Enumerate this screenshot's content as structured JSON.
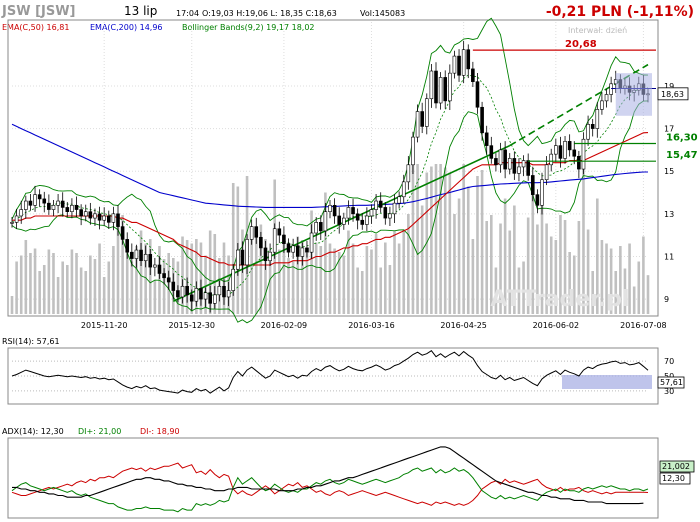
{
  "header": {
    "ticker": "JSW [JSW]",
    "date": "13 lip",
    "time": "17:04",
    "ohlc": "O:19,03 H:19,06 L: 18,35 C:18,63",
    "vol": "Vol:145083",
    "change": "-0,21 PLN (-1,11%)"
  },
  "legend": {
    "ema50": "EMA(C,50) 16,81",
    "ema200": "EMA(C,200) 14,96",
    "bollinger": "Bollinger Bands(9,2) 19,17 18,02"
  },
  "annotations": {
    "interval": "Interwał: dzień",
    "watermark": "ATTrader.pl",
    "level_top": "20,68",
    "level_mid1": "16,30",
    "level_mid2": "15,47",
    "last_price": "18,63"
  },
  "rsi": {
    "label": "RSI(14): 57,61",
    "value_tag": "57,61"
  },
  "adx": {
    "label": "ADX(14): 12,30",
    "di_plus": "DI+: 21,00",
    "di_minus": "DI-: 18,90",
    "tag_plus": "21,002",
    "tag_adx": "12,30"
  },
  "colors": {
    "ema50": "#cc0000",
    "ema200": "#0000cc",
    "bollinger": "#008000",
    "candle": "#000000",
    "volume": "#c0c0c0",
    "di_plus": "#008000",
    "di_minus": "#cc0000",
    "change": "#cc0000"
  },
  "chart_data": {
    "type": "line",
    "title": "JSW [JSW]",
    "x_ticks": [
      "2015-11-20",
      "2015-12-30",
      "2016-02-09",
      "2016-03-16",
      "2016-04-25",
      "2016-06-02",
      "2016-07-08"
    ],
    "y_ticks": [
      9,
      11,
      13,
      15,
      17,
      19
    ],
    "ylim": [
      8.3,
      22.0
    ],
    "close": [
      12.6,
      12.9,
      13.2,
      13.6,
      13.4,
      13.9,
      13.7,
      13.5,
      13.2,
      13.4,
      13.6,
      13.3,
      13.1,
      13.4,
      13.2,
      12.9,
      13.1,
      12.8,
      13.0,
      12.7,
      12.9,
      12.6,
      13.0,
      12.4,
      11.8,
      11.2,
      10.9,
      11.3,
      10.8,
      11.1,
      10.5,
      10.6,
      10.2,
      10.0,
      9.8,
      9.4,
      9.1,
      9.6,
      9.2,
      8.9,
      9.5,
      9.0,
      9.3,
      8.8,
      9.2,
      9.6,
      9.1,
      9.4,
      10.4,
      11.3,
      10.6,
      11.8,
      12.4,
      11.9,
      11.4,
      10.8,
      11.2,
      12.3,
      12.0,
      11.6,
      11.2,
      11.5,
      11.0,
      11.4,
      11.2,
      12.1,
      12.6,
      12.2,
      13.1,
      13.4,
      12.9,
      12.5,
      12.8,
      13.3,
      13.0,
      12.7,
      12.5,
      12.9,
      13.2,
      13.6,
      13.3,
      12.8,
      13.0,
      13.5,
      13.8,
      14.5,
      15.3,
      16.6,
      17.8,
      17.1,
      18.4,
      19.7,
      18.2,
      19.4,
      18.3,
      19.6,
      20.4,
      19.5,
      20.7,
      19.8,
      19.2,
      18.0,
      16.8,
      16.2,
      15.6,
      15.3,
      16.0,
      15.1,
      15.6,
      14.9,
      15.2,
      15.5,
      14.8,
      13.9,
      13.4,
      14.6,
      15.3,
      15.8,
      16.2,
      15.6,
      16.4,
      16.0,
      15.7,
      15.1,
      16.5,
      17.2,
      17.0,
      17.9,
      18.3,
      18.6,
      19.1,
      19.3,
      18.9,
      19.0,
      18.7,
      18.8,
      19.1,
      18.6,
      18.63
    ],
    "ema50": [
      12.7,
      12.7,
      12.7,
      12.8,
      12.8,
      12.9,
      12.9,
      12.9,
      12.9,
      12.9,
      12.9,
      12.9,
      12.9,
      12.9,
      12.9,
      12.9,
      12.9,
      12.9,
      12.9,
      12.9,
      12.9,
      12.9,
      12.9,
      12.8,
      12.8,
      12.7,
      12.6,
      12.6,
      12.5,
      12.4,
      12.3,
      12.2,
      12.1,
      12.0,
      11.9,
      11.8,
      11.6,
      11.5,
      11.4,
      11.3,
      11.2,
      11.0,
      11.0,
      10.9,
      10.8,
      10.7,
      10.7,
      10.6,
      10.6,
      10.6,
      10.6,
      10.6,
      10.6,
      10.6,
      10.6,
      10.6,
      10.6,
      10.7,
      10.7,
      10.7,
      10.7,
      10.8,
      10.8,
      10.8,
      10.8,
      10.9,
      11.0,
      11.0,
      11.1,
      11.2,
      11.2,
      11.3,
      11.4,
      11.4,
      11.5,
      11.5,
      11.6,
      11.6,
      11.7,
      11.8,
      11.8,
      11.9,
      11.9,
      12.0,
      12.1,
      12.2,
      12.3,
      12.5,
      12.7,
      12.9,
      13.1,
      13.3,
      13.5,
      13.7,
      13.9,
      14.1,
      14.3,
      14.5,
      14.7,
      14.9,
      15.1,
      15.2,
      15.3,
      15.3,
      15.3,
      15.3,
      15.4,
      15.4,
      15.4,
      15.4,
      15.4,
      15.4,
      15.4,
      15.3,
      15.3,
      15.3,
      15.3,
      15.4,
      15.4,
      15.4,
      15.4,
      15.5,
      15.5,
      15.5,
      15.5,
      15.6,
      15.7,
      15.8,
      15.9,
      16.0,
      16.1,
      16.2,
      16.3,
      16.4,
      16.5,
      16.6,
      16.7,
      16.8,
      16.81
    ],
    "ema200": [
      17.2,
      17.1,
      17.0,
      16.9,
      16.8,
      16.7,
      16.6,
      16.5,
      16.4,
      16.3,
      16.2,
      16.1,
      16.0,
      15.9,
      15.8,
      15.7,
      15.6,
      15.5,
      15.4,
      15.3,
      15.2,
      15.1,
      15.0,
      14.9,
      14.8,
      14.7,
      14.6,
      14.5,
      14.4,
      14.3,
      14.2,
      14.1,
      14.0,
      13.95,
      13.9,
      13.85,
      13.8,
      13.75,
      13.7,
      13.65,
      13.6,
      13.55,
      13.5,
      13.48,
      13.46,
      13.44,
      13.42,
      13.4,
      13.38,
      13.36,
      13.35,
      13.34,
      13.33,
      13.32,
      13.31,
      13.3,
      13.3,
      13.3,
      13.3,
      13.3,
      13.3,
      13.3,
      13.3,
      13.3,
      13.3,
      13.3,
      13.31,
      13.32,
      13.33,
      13.34,
      13.35,
      13.36,
      13.37,
      13.38,
      13.39,
      13.4,
      13.4,
      13.4,
      13.41,
      13.42,
      13.43,
      13.44,
      13.45,
      13.46,
      13.48,
      13.5,
      13.53,
      13.57,
      13.62,
      13.67,
      13.72,
      13.78,
      13.84,
      13.9,
      13.95,
      14.0,
      14.06,
      14.12,
      14.18,
      14.24,
      14.28,
      14.3,
      14.32,
      14.34,
      14.36,
      14.38,
      14.4,
      14.41,
      14.42,
      14.43,
      14.44,
      14.45,
      14.46,
      14.46,
      14.46,
      14.47,
      14.48,
      14.5,
      14.52,
      14.54,
      14.56,
      14.58,
      14.6,
      14.62,
      14.64,
      14.67,
      14.7,
      14.73,
      14.76,
      14.79,
      14.82,
      14.85,
      14.87,
      14.89,
      14.91,
      14.93,
      14.95,
      14.96,
      14.96
    ],
    "rsi": [
      50,
      52,
      55,
      58,
      56,
      54,
      52,
      50,
      49,
      50,
      51,
      50,
      49,
      50,
      49,
      48,
      49,
      47,
      48,
      46,
      47,
      45,
      46,
      42,
      38,
      35,
      33,
      36,
      34,
      37,
      33,
      34,
      31,
      30,
      29,
      28,
      27,
      31,
      29,
      28,
      33,
      30,
      32,
      27,
      31,
      35,
      30,
      34,
      48,
      56,
      50,
      58,
      62,
      57,
      52,
      47,
      50,
      58,
      55,
      52,
      49,
      51,
      47,
      51,
      50,
      56,
      60,
      57,
      62,
      64,
      60,
      57,
      59,
      63,
      60,
      58,
      57,
      60,
      62,
      65,
      62,
      58,
      60,
      64,
      66,
      70,
      74,
      79,
      82,
      78,
      80,
      84,
      76,
      80,
      75,
      79,
      82,
      77,
      83,
      78,
      74,
      64,
      56,
      52,
      48,
      46,
      51,
      45,
      48,
      44,
      46,
      48,
      44,
      40,
      37,
      46,
      51,
      54,
      57,
      52,
      58,
      55,
      53,
      50,
      58,
      62,
      60,
      64,
      66,
      67,
      69,
      70,
      67,
      68,
      65,
      66,
      68,
      63,
      57.61
    ],
    "adx": [
      22,
      22,
      21,
      21,
      20,
      20,
      19,
      19,
      18,
      18,
      17,
      17,
      16,
      16,
      16,
      16,
      17,
      17,
      18,
      19,
      20,
      21,
      22,
      23,
      24,
      25,
      26,
      27,
      27,
      28,
      28,
      27,
      27,
      26,
      26,
      25,
      24,
      24,
      23,
      23,
      22,
      22,
      21,
      21,
      20,
      20,
      20,
      21,
      21,
      22,
      22,
      22,
      21,
      21,
      21,
      21,
      21,
      21,
      20,
      20,
      20,
      20,
      21,
      21,
      22,
      22,
      23,
      23,
      24,
      25,
      26,
      26,
      27,
      28,
      28,
      29,
      30,
      31,
      32,
      33,
      34,
      35,
      36,
      37,
      38,
      39,
      40,
      41,
      42,
      43,
      44,
      45,
      46,
      47,
      47,
      46,
      44,
      42,
      40,
      38,
      36,
      34,
      32,
      30,
      28,
      26,
      25,
      24,
      23,
      22,
      21,
      20,
      19,
      19,
      18,
      17,
      17,
      16,
      16,
      15,
      15,
      15,
      14,
      14,
      14,
      13,
      13,
      13,
      13,
      12,
      12,
      12,
      12,
      12,
      12,
      12,
      12,
      12.3
    ],
    "di_plus": [
      20,
      22,
      24,
      25,
      23,
      22,
      21,
      20,
      21,
      22,
      21,
      20,
      19,
      20,
      18,
      17,
      18,
      16,
      15,
      14,
      13,
      12,
      12,
      10,
      9,
      8,
      8,
      9,
      9,
      10,
      9,
      9,
      9,
      8,
      8,
      8,
      7,
      9,
      8,
      8,
      12,
      11,
      12,
      11,
      12,
      14,
      13,
      14,
      22,
      28,
      24,
      26,
      28,
      25,
      22,
      20,
      21,
      24,
      22,
      20,
      19,
      20,
      19,
      21,
      21,
      23,
      25,
      24,
      26,
      27,
      25,
      24,
      25,
      27,
      26,
      25,
      24,
      25,
      26,
      27,
      26,
      25,
      26,
      27,
      28,
      30,
      31,
      33,
      34,
      32,
      33,
      34,
      31,
      33,
      31,
      32,
      34,
      32,
      33,
      31,
      28,
      24,
      20,
      18,
      16,
      15,
      17,
      15,
      16,
      15,
      16,
      17,
      16,
      15,
      14,
      17,
      19,
      20,
      21,
      19,
      21,
      20,
      20,
      19,
      21,
      22,
      21,
      22,
      23,
      22,
      23,
      22,
      21,
      21,
      20,
      21,
      21,
      20,
      21.0
    ],
    "di_minus": [
      19,
      18,
      17,
      17,
      18,
      19,
      20,
      21,
      22,
      21,
      22,
      23,
      24,
      23,
      25,
      26,
      25,
      27,
      26,
      28,
      28,
      29,
      28,
      30,
      32,
      33,
      34,
      33,
      34,
      32,
      34,
      33,
      34,
      35,
      35,
      36,
      37,
      34,
      35,
      36,
      31,
      32,
      30,
      33,
      30,
      28,
      30,
      29,
      21,
      18,
      20,
      18,
      17,
      19,
      21,
      23,
      21,
      18,
      20,
      22,
      24,
      23,
      25,
      22,
      23,
      21,
      19,
      20,
      18,
      17,
      19,
      20,
      19,
      17,
      18,
      19,
      20,
      19,
      18,
      17,
      18,
      19,
      18,
      17,
      16,
      15,
      14,
      13,
      12,
      13,
      12,
      11,
      13,
      12,
      13,
      12,
      11,
      12,
      11,
      12,
      14,
      17,
      21,
      23,
      25,
      26,
      24,
      27,
      25,
      26,
      25,
      24,
      25,
      26,
      27,
      24,
      22,
      21,
      20,
      22,
      20,
      21,
      21,
      22,
      20,
      19,
      20,
      19,
      18,
      19,
      18,
      19,
      19,
      19,
      19,
      19,
      19,
      19,
      18.9
    ],
    "levels": [
      20.68,
      16.3,
      15.47
    ]
  }
}
